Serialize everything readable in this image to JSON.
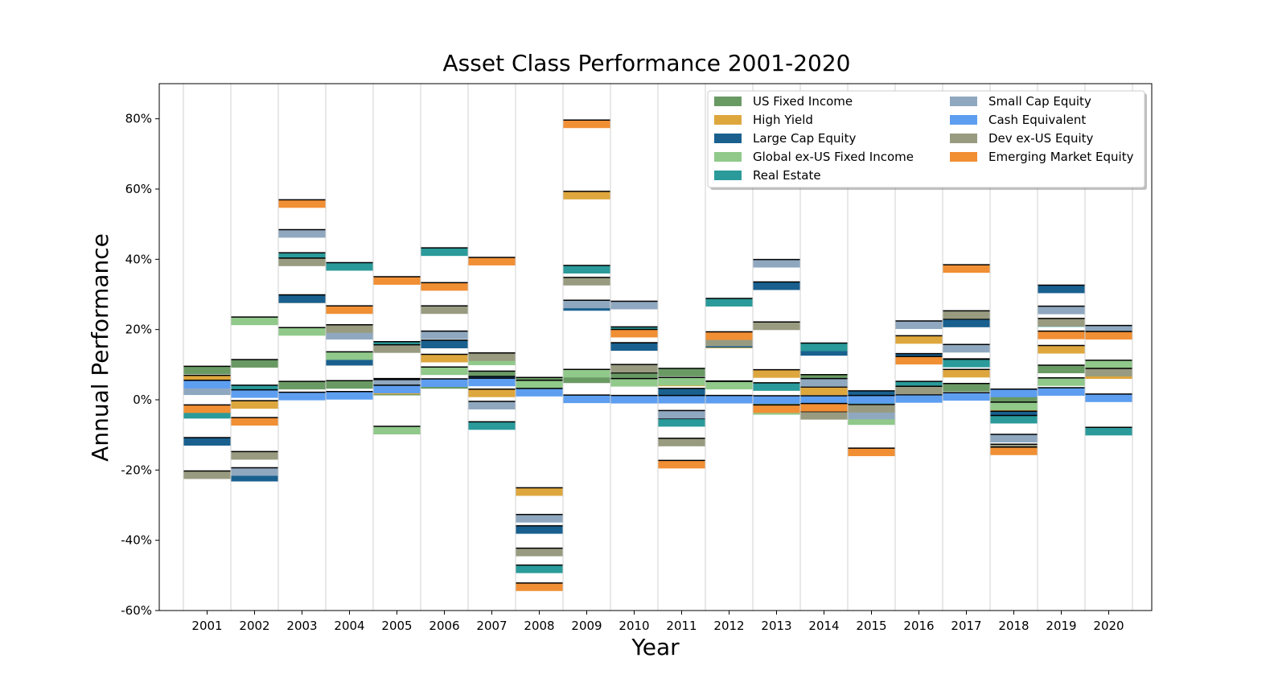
{
  "chart_data": {
    "type": "bar",
    "title": "Asset Class Performance 2001-2020",
    "xlabel": "Year",
    "ylabel": "Annual Performance",
    "ylim": [
      -60,
      90
    ],
    "yticks": [
      -60,
      -40,
      -20,
      0,
      20,
      40,
      60,
      80
    ],
    "ytick_labels": [
      "-60%",
      "-40%",
      "-20%",
      "0%",
      "20%",
      "40%",
      "60%",
      "80%"
    ],
    "categories": [
      "2001",
      "2002",
      "2003",
      "2004",
      "2005",
      "2006",
      "2007",
      "2008",
      "2009",
      "2010",
      "2011",
      "2012",
      "2013",
      "2014",
      "2015",
      "2016",
      "2017",
      "2018",
      "2019",
      "2020"
    ],
    "grid": "vertical",
    "legend_position": "top-right",
    "legend_columns": 2,
    "series": [
      {
        "name": "US Fixed Income",
        "color": "#6a9a64",
        "values": [
          8.4,
          10.3,
          4.1,
          4.3,
          2.4,
          4.3,
          7.0,
          5.2,
          5.9,
          6.5,
          7.8,
          4.2,
          -2.0,
          6.0,
          0.5,
          2.6,
          3.5,
          0.0,
          8.7,
          7.5
        ]
      },
      {
        "name": "High Yield",
        "color": "#dea73e",
        "values": [
          5.8,
          -1.4,
          28.7,
          10.9,
          2.7,
          11.8,
          1.9,
          -26.2,
          58.2,
          15.1,
          5.0,
          15.8,
          7.4,
          2.5,
          -4.5,
          17.1,
          7.5,
          -2.1,
          14.3,
          7.1
        ]
      },
      {
        "name": "Large Cap Equity",
        "color": "#19608f",
        "values": [
          -11.9,
          -22.1,
          28.7,
          10.9,
          4.9,
          15.8,
          5.5,
          -37.0,
          26.5,
          15.1,
          2.1,
          16.0,
          32.4,
          13.7,
          1.4,
          12.0,
          21.8,
          -4.4,
          31.5,
          18.4
        ]
      },
      {
        "name": "Global ex-US Fixed Income",
        "color": "#90c98a",
        "values": [
          -3.5,
          22.4,
          19.4,
          12.5,
          -8.7,
          8.2,
          11.0,
          4.4,
          7.5,
          4.9,
          5.2,
          4.1,
          -3.1,
          -3.1,
          -6.0,
          1.5,
          10.5,
          -1.8,
          5.1,
          10.1
        ]
      },
      {
        "name": "Real Estate",
        "color": "#2a9a9a",
        "values": [
          -4.2,
          3.0,
          40.7,
          37.9,
          15.4,
          42.1,
          -7.4,
          -48.2,
          37.1,
          19.6,
          -6.5,
          27.7,
          3.7,
          15.0,
          0.0,
          4.1,
          10.4,
          -5.6,
          21.9,
          -9.0
        ]
      },
      {
        "name": "Small Cap Equity",
        "color": "#8fa8c0",
        "values": [
          2.5,
          -20.5,
          47.3,
          18.3,
          4.6,
          18.4,
          -1.6,
          -33.8,
          27.2,
          26.9,
          -4.2,
          16.4,
          38.8,
          4.9,
          -4.4,
          21.3,
          14.6,
          -11.0,
          25.5,
          20.0
        ]
      },
      {
        "name": "Cash Equivalent",
        "color": "#5d9ef0",
        "values": [
          4.4,
          1.7,
          1.0,
          1.2,
          3.0,
          4.8,
          5.0,
          2.1,
          0.2,
          0.1,
          0.1,
          0.1,
          0.0,
          0.0,
          0.1,
          0.3,
          0.9,
          1.9,
          2.3,
          0.5
        ]
      },
      {
        "name": "Dev ex-US Equity",
        "color": "#999b80",
        "values": [
          -21.4,
          -15.9,
          39.2,
          20.2,
          14.5,
          25.6,
          12.2,
          -43.4,
          33.7,
          8.9,
          -12.1,
          16.4,
          21.0,
          -4.5,
          -2.5,
          2.7,
          24.2,
          -13.8,
          22.0,
          7.8
        ]
      },
      {
        "name": "Emerging Market Equity",
        "color": "#f18f34",
        "values": [
          -2.6,
          -6.2,
          55.8,
          25.6,
          33.9,
          32.2,
          39.4,
          -53.3,
          78.5,
          18.9,
          -18.4,
          18.2,
          -2.6,
          -2.2,
          -14.9,
          11.2,
          37.3,
          -14.6,
          18.4,
          18.3
        ]
      }
    ]
  }
}
